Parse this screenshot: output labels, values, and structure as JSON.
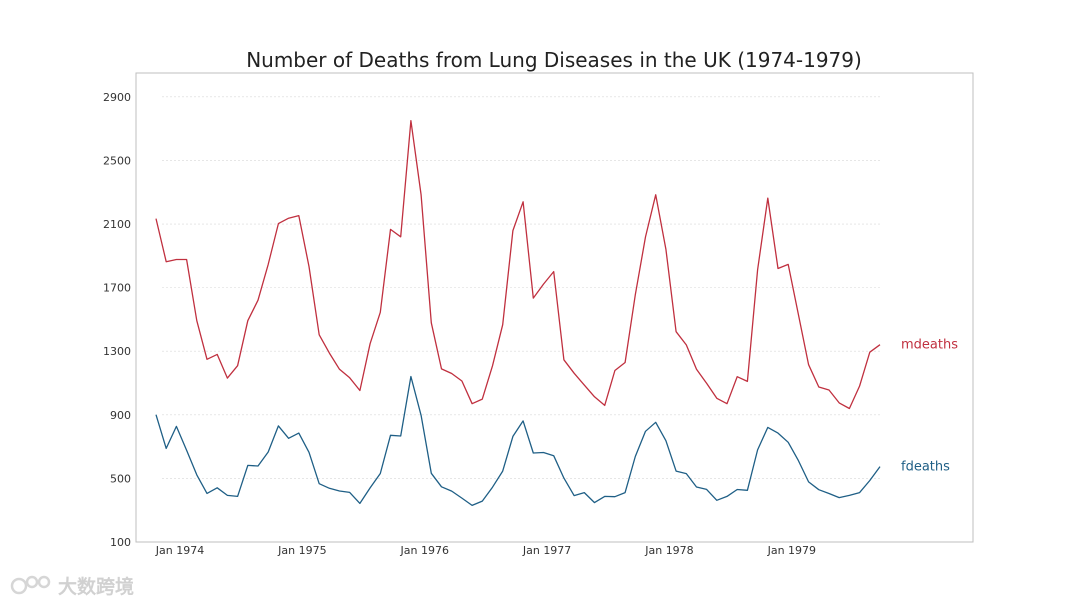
{
  "chart_data": {
    "type": "line",
    "title": "Number of Deaths from Lung Diseases in the UK (1974-1979)",
    "xlabel": "",
    "ylabel": "",
    "ylim": [
      100,
      3050
    ],
    "yticks": [
      100,
      500,
      900,
      1300,
      1700,
      2100,
      2500,
      2900
    ],
    "ytick_labels": [
      "100",
      "500",
      "900",
      "1300",
      "1700",
      "2100",
      "2500",
      "2900"
    ],
    "xtick_labels": [
      "Jan 1974",
      "Jan 1975",
      "Jan 1976",
      "Jan 1977",
      "Jan 1978",
      "Jan 1979"
    ],
    "xtick_index": [
      0,
      12,
      24,
      36,
      48,
      60
    ],
    "grid": "horizontal",
    "legend": "inline-right",
    "series": [
      {
        "name": "mdeaths",
        "color": "#c0303f",
        "values": [
          2134,
          1863,
          1877,
          1877,
          1492,
          1249,
          1280,
          1131,
          1209,
          1492,
          1621,
          1846,
          2103,
          2137,
          2153,
          1833,
          1403,
          1288,
          1186,
          1133,
          1053,
          1347,
          1545,
          2066,
          2020,
          2750,
          2283,
          1479,
          1189,
          1160,
          1113,
          970,
          999,
          1208,
          1467,
          2059,
          2240,
          1634,
          1722,
          1801,
          1246,
          1162,
          1087,
          1013,
          959,
          1179,
          1229,
          1655,
          2019,
          2284,
          1942,
          1423,
          1340,
          1187,
          1098,
          1004,
          970,
          1140,
          1110,
          1812,
          2263,
          1820,
          1846,
          1531,
          1215,
          1075,
          1056,
          975,
          940,
          1081,
          1294,
          1341
        ]
      },
      {
        "name": "fdeaths",
        "color": "#1f5f86",
        "values": [
          901,
          689,
          827,
          677,
          522,
          406,
          441,
          393,
          387,
          582,
          578,
          666,
          830,
          752,
          785,
          664,
          467,
          438,
          421,
          412,
          343,
          440,
          531,
          771,
          767,
          1141,
          896,
          532,
          447,
          420,
          376,
          330,
          357,
          445,
          546,
          764,
          862,
          660,
          663,
          643,
          502,
          392,
          411,
          348,
          387,
          385,
          411,
          638,
          796,
          853,
          737,
          546,
          530,
          446,
          431,
          362,
          387,
          430,
          425,
          679,
          821,
          785,
          727,
          612,
          478,
          429,
          405,
          379,
          393,
          411,
          487,
          574
        ]
      }
    ]
  },
  "watermark": {
    "text": "大数跨境"
  }
}
